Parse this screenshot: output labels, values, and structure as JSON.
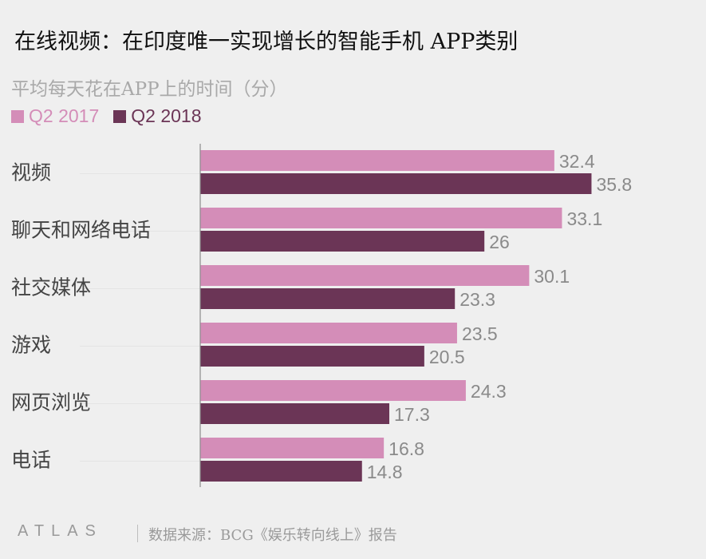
{
  "title": "在线视频：在印度唯一实现增长的智能手机 APP类别",
  "subtitle": "平均每天花在APP上的时间（分）",
  "footer": {
    "logo": "ATLAS",
    "source": "数据来源：BCG《娱乐转向线上》报告"
  },
  "colors": {
    "series_2017": "#d48db8",
    "series_2018": "#6b3556",
    "value_label": "#8a8a8a",
    "category_label": "#444444",
    "axis": "#8c8c8c"
  },
  "chart_data": {
    "type": "bar",
    "orientation": "horizontal",
    "categories": [
      "视频",
      "聊天和网络电话",
      "社交媒体",
      "游戏",
      "网页浏览",
      "电话"
    ],
    "series": [
      {
        "name": "Q2 2017",
        "values": [
          32.4,
          33.1,
          30.1,
          23.5,
          24.3,
          16.8
        ]
      },
      {
        "name": "Q2 2018",
        "values": [
          35.8,
          26,
          23.3,
          20.5,
          17.3,
          14.8
        ]
      }
    ],
    "value_labels": [
      [
        "32.4",
        "33.1",
        "30.1",
        "23.5",
        "24.3",
        "16.8"
      ],
      [
        "35.8",
        "26",
        "23.3",
        "20.5",
        "17.3",
        "14.8"
      ]
    ],
    "xlim": [
      0,
      36
    ],
    "grid": false,
    "legend_position": "top-left"
  }
}
